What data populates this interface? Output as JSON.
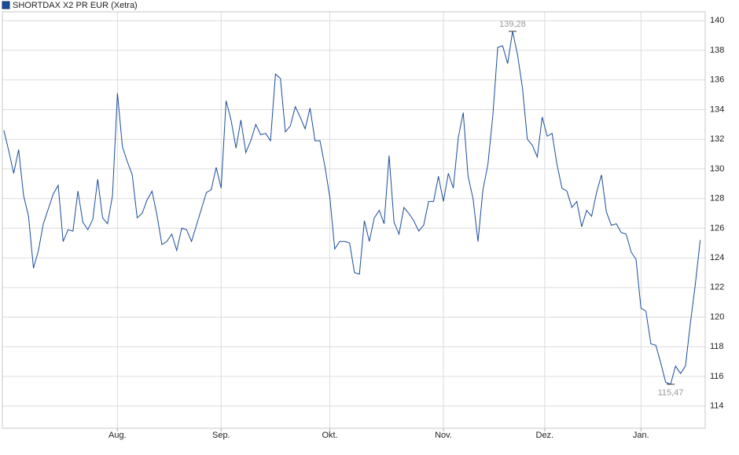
{
  "chart_data": {
    "type": "line",
    "series": [
      {
        "name": "SHORTDAX X2 PR EUR (Xetra)",
        "color": "#1a4c9c",
        "values": [
          132.6,
          131.2,
          129.7,
          131.3,
          128.2,
          126.8,
          123.3,
          124.5,
          126.3,
          127.3,
          128.3,
          128.9,
          125.1,
          125.9,
          125.8,
          128.5,
          126.4,
          125.9,
          126.6,
          129.3,
          126.7,
          126.3,
          128.2,
          135.1,
          131.5,
          130.5,
          129.6,
          126.7,
          127.0,
          127.9,
          128.5,
          126.9,
          124.9,
          125.1,
          125.6,
          124.5,
          126.0,
          125.9,
          125.1,
          126.2,
          127.3,
          128.4,
          128.6,
          130.1,
          128.7,
          134.6,
          133.3,
          131.4,
          133.3,
          131.1,
          131.9,
          133.0,
          132.3,
          132.4,
          131.9,
          136.4,
          136.1,
          132.5,
          132.9,
          134.2,
          133.5,
          132.7,
          134.1,
          131.9,
          131.9,
          130.2,
          128.1,
          124.6,
          125.1,
          125.1,
          125.0,
          123.0,
          122.9,
          126.5,
          125.1,
          126.7,
          127.2,
          126.3,
          130.9,
          126.4,
          125.6,
          127.4,
          127.0,
          126.5,
          125.8,
          126.2,
          127.8,
          127.8,
          129.5,
          127.8,
          129.7,
          128.7,
          132.1,
          133.8,
          129.5,
          128.0,
          125.1,
          128.6,
          130.3,
          133.6,
          138.2,
          138.3,
          137.1,
          139.28,
          137.7,
          135.5,
          132.0,
          131.6,
          130.8,
          133.5,
          132.2,
          132.4,
          130.3,
          128.7,
          128.5,
          127.4,
          127.8,
          126.1,
          127.2,
          126.8,
          128.4,
          129.6,
          127.1,
          126.2,
          126.3,
          125.7,
          125.6,
          124.4,
          123.9,
          120.6,
          120.4,
          118.2,
          118.1,
          116.9,
          115.6,
          115.47,
          116.7,
          116.2,
          116.7,
          119.6,
          122.2,
          125.2
        ]
      }
    ],
    "xlim": [
      -0.3,
      142
    ],
    "xticks": [
      {
        "value": 23,
        "label": "Aug."
      },
      {
        "value": 44,
        "label": "Sep."
      },
      {
        "value": 66,
        "label": "Okt."
      },
      {
        "value": 89,
        "label": "Nov."
      },
      {
        "value": 109.5,
        "label": "Dez."
      },
      {
        "value": 129,
        "label": "Jan."
      }
    ],
    "ylim": [
      112.5,
      140.6
    ],
    "yticks": [
      114,
      116,
      118,
      120,
      122,
      124,
      126,
      128,
      130,
      132,
      134,
      136,
      138,
      140
    ],
    "grid": true,
    "annotations": [
      {
        "label": "139,28",
        "value": 139.28,
        "position": "above"
      },
      {
        "label": "115,47",
        "value": 115.47,
        "position": "below"
      }
    ]
  }
}
